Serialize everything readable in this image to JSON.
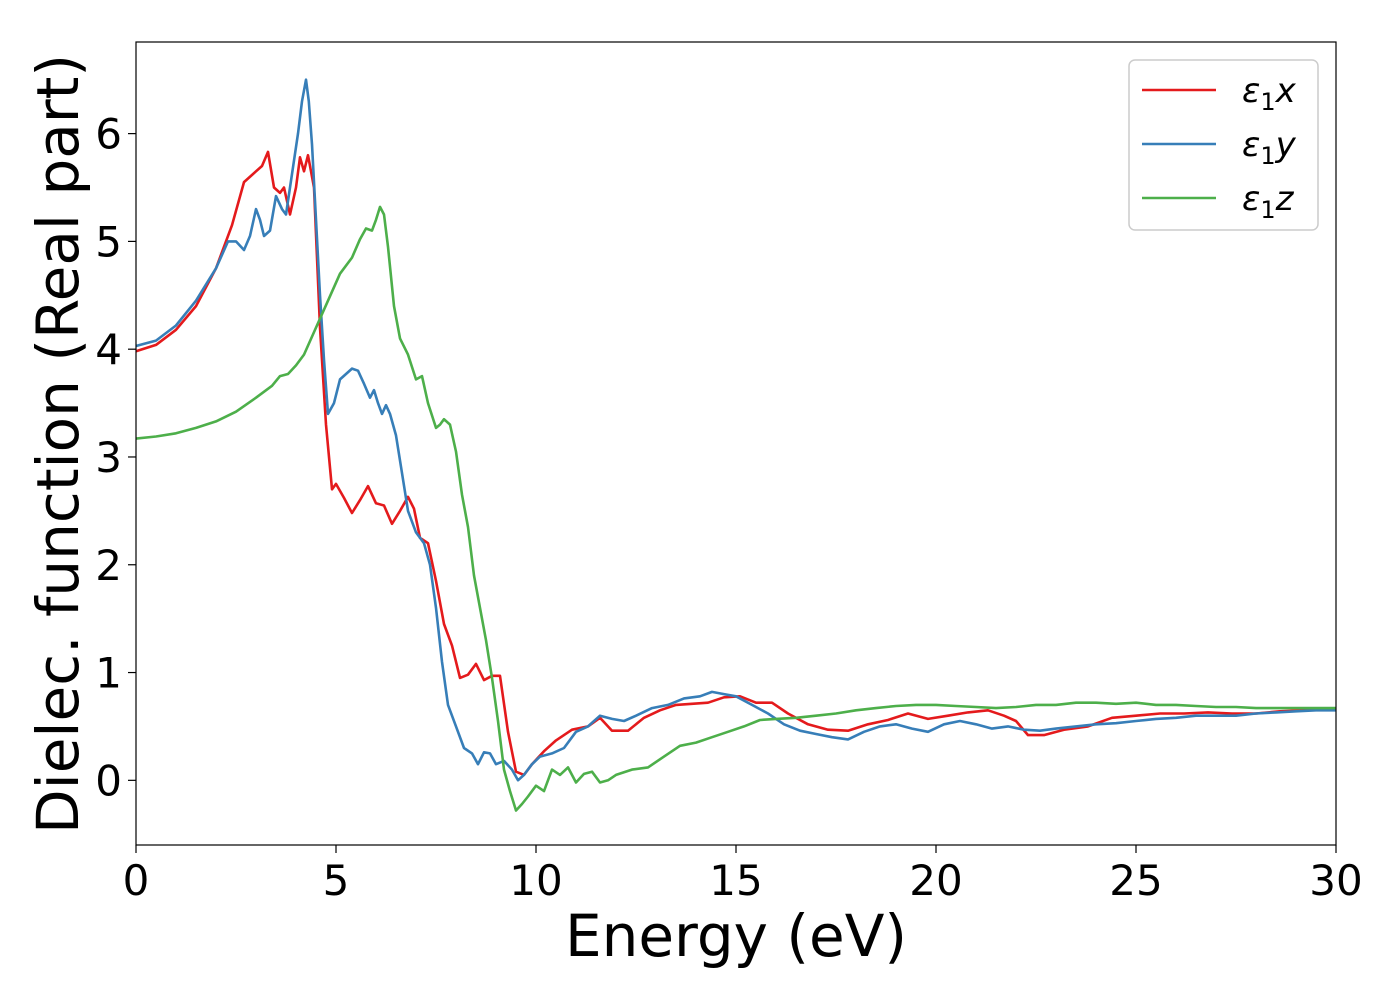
{
  "chart_data": {
    "type": "line",
    "title": "",
    "xlabel": "Energy (eV)",
    "ylabel": "Dielec. function (Real part)",
    "xlim": [
      0,
      30
    ],
    "ylim": [
      -0.6,
      6.85
    ],
    "xticks": [
      0,
      5,
      10,
      15,
      20,
      25,
      30
    ],
    "yticks": [
      0,
      1,
      2,
      3,
      4,
      5,
      6
    ],
    "grid": false,
    "legend_position": "top-right",
    "series": [
      {
        "name": "ε₁x",
        "legend_base": "ε",
        "legend_sub": "1",
        "legend_suffix": "x",
        "color": "#e41a1c",
        "x": [
          0,
          0.5,
          1.0,
          1.5,
          2.0,
          2.4,
          2.7,
          3.0,
          3.15,
          3.3,
          3.45,
          3.6,
          3.7,
          3.85,
          4.0,
          4.1,
          4.2,
          4.3,
          4.45,
          4.6,
          4.75,
          4.9,
          5.0,
          5.2,
          5.4,
          5.6,
          5.8,
          6.0,
          6.2,
          6.4,
          6.6,
          6.8,
          6.95,
          7.1,
          7.3,
          7.5,
          7.7,
          7.9,
          8.1,
          8.3,
          8.5,
          8.7,
          8.9,
          9.1,
          9.3,
          9.5,
          9.7,
          9.9,
          10.2,
          10.5,
          10.9,
          11.3,
          11.6,
          11.9,
          12.3,
          12.7,
          13.1,
          13.5,
          13.9,
          14.3,
          14.7,
          15.1,
          15.5,
          15.9,
          16.3,
          16.8,
          17.3,
          17.8,
          18.3,
          18.8,
          19.3,
          19.8,
          20.3,
          20.8,
          21.3,
          21.7,
          22.0,
          22.3,
          22.7,
          23.2,
          23.8,
          24.4,
          25.0,
          25.6,
          26.2,
          26.8,
          27.4,
          28.0,
          28.6,
          29.2,
          30.0
        ],
        "y": [
          3.98,
          4.04,
          4.18,
          4.4,
          4.75,
          5.15,
          5.55,
          5.65,
          5.7,
          5.83,
          5.5,
          5.45,
          5.5,
          5.25,
          5.5,
          5.78,
          5.65,
          5.8,
          5.5,
          4.2,
          3.3,
          2.7,
          2.75,
          2.62,
          2.48,
          2.6,
          2.73,
          2.57,
          2.55,
          2.38,
          2.5,
          2.63,
          2.52,
          2.25,
          2.2,
          1.85,
          1.45,
          1.25,
          0.95,
          0.98,
          1.08,
          0.93,
          0.97,
          0.97,
          0.45,
          0.08,
          0.05,
          0.15,
          0.27,
          0.37,
          0.47,
          0.5,
          0.58,
          0.46,
          0.46,
          0.58,
          0.65,
          0.7,
          0.71,
          0.72,
          0.77,
          0.78,
          0.72,
          0.72,
          0.62,
          0.52,
          0.47,
          0.46,
          0.52,
          0.56,
          0.62,
          0.57,
          0.6,
          0.63,
          0.65,
          0.6,
          0.55,
          0.42,
          0.42,
          0.47,
          0.5,
          0.58,
          0.6,
          0.62,
          0.62,
          0.63,
          0.62,
          0.62,
          0.64,
          0.65,
          0.66
        ]
      },
      {
        "name": "ε₁y",
        "legend_base": "ε",
        "legend_sub": "1",
        "legend_suffix": "y",
        "color": "#377eb8",
        "x": [
          0,
          0.5,
          1.0,
          1.5,
          2.0,
          2.3,
          2.5,
          2.7,
          2.85,
          3.0,
          3.1,
          3.2,
          3.35,
          3.5,
          3.65,
          3.75,
          3.85,
          3.95,
          4.05,
          4.15,
          4.25,
          4.32,
          4.4,
          4.5,
          4.6,
          4.7,
          4.8,
          4.95,
          5.1,
          5.25,
          5.4,
          5.55,
          5.7,
          5.85,
          5.95,
          6.05,
          6.15,
          6.25,
          6.35,
          6.5,
          6.65,
          6.8,
          7.0,
          7.2,
          7.35,
          7.5,
          7.65,
          7.8,
          8.0,
          8.2,
          8.4,
          8.55,
          8.7,
          8.85,
          9.0,
          9.2,
          9.4,
          9.55,
          9.7,
          9.9,
          10.1,
          10.4,
          10.7,
          11.0,
          11.3,
          11.6,
          11.9,
          12.2,
          12.5,
          12.9,
          13.3,
          13.7,
          14.1,
          14.4,
          14.7,
          15.0,
          15.4,
          15.8,
          16.2,
          16.6,
          17.0,
          17.4,
          17.8,
          18.2,
          18.6,
          19.0,
          19.4,
          19.8,
          20.2,
          20.6,
          21.0,
          21.4,
          21.8,
          22.2,
          22.6,
          23.0,
          23.5,
          24.0,
          24.5,
          25.0,
          25.5,
          26.0,
          26.5,
          27.0,
          27.5,
          28.0,
          28.5,
          29.0,
          29.5,
          30.0
        ],
        "y": [
          4.03,
          4.08,
          4.22,
          4.45,
          4.75,
          5.0,
          5.0,
          4.92,
          5.05,
          5.3,
          5.2,
          5.05,
          5.1,
          5.42,
          5.3,
          5.25,
          5.5,
          5.75,
          6.0,
          6.3,
          6.5,
          6.3,
          5.9,
          5.2,
          4.5,
          3.9,
          3.4,
          3.5,
          3.72,
          3.77,
          3.82,
          3.8,
          3.68,
          3.55,
          3.62,
          3.5,
          3.4,
          3.48,
          3.4,
          3.2,
          2.85,
          2.5,
          2.3,
          2.2,
          2.0,
          1.6,
          1.1,
          0.7,
          0.5,
          0.3,
          0.25,
          0.15,
          0.26,
          0.25,
          0.15,
          0.18,
          0.1,
          0.0,
          0.05,
          0.15,
          0.22,
          0.25,
          0.3,
          0.45,
          0.5,
          0.6,
          0.57,
          0.55,
          0.6,
          0.67,
          0.7,
          0.76,
          0.78,
          0.82,
          0.8,
          0.78,
          0.7,
          0.62,
          0.52,
          0.46,
          0.43,
          0.4,
          0.38,
          0.45,
          0.5,
          0.52,
          0.48,
          0.45,
          0.52,
          0.55,
          0.52,
          0.48,
          0.5,
          0.47,
          0.46,
          0.48,
          0.5,
          0.52,
          0.53,
          0.55,
          0.57,
          0.58,
          0.6,
          0.6,
          0.6,
          0.62,
          0.63,
          0.64,
          0.65,
          0.65
        ]
      },
      {
        "name": "ε₁z",
        "legend_base": "ε",
        "legend_sub": "1",
        "legend_suffix": "z",
        "color": "#4daf4a",
        "x": [
          0,
          0.5,
          1.0,
          1.5,
          2.0,
          2.5,
          3.0,
          3.4,
          3.6,
          3.8,
          4.0,
          4.2,
          4.5,
          4.8,
          5.1,
          5.4,
          5.6,
          5.75,
          5.9,
          6.0,
          6.1,
          6.2,
          6.3,
          6.45,
          6.6,
          6.8,
          7.0,
          7.15,
          7.3,
          7.5,
          7.6,
          7.7,
          7.85,
          8.0,
          8.15,
          8.3,
          8.45,
          8.6,
          8.75,
          8.9,
          9.05,
          9.2,
          9.35,
          9.5,
          9.65,
          9.8,
          10.0,
          10.2,
          10.4,
          10.6,
          10.8,
          11.0,
          11.2,
          11.4,
          11.6,
          11.8,
          12.0,
          12.4,
          12.8,
          13.2,
          13.6,
          14.0,
          14.4,
          14.8,
          15.2,
          15.6,
          16.0,
          16.5,
          17.0,
          17.5,
          18.0,
          18.5,
          19.0,
          19.5,
          20.0,
          20.5,
          21.0,
          21.5,
          22.0,
          22.5,
          23.0,
          23.5,
          24.0,
          24.5,
          25.0,
          25.5,
          26.0,
          26.5,
          27.0,
          27.5,
          28.0,
          28.5,
          29.0,
          29.5,
          30.0
        ],
        "y": [
          3.17,
          3.19,
          3.22,
          3.27,
          3.33,
          3.42,
          3.55,
          3.66,
          3.75,
          3.77,
          3.85,
          3.95,
          4.2,
          4.45,
          4.7,
          4.85,
          5.02,
          5.12,
          5.1,
          5.2,
          5.32,
          5.25,
          4.95,
          4.4,
          4.1,
          3.95,
          3.72,
          3.75,
          3.5,
          3.27,
          3.3,
          3.35,
          3.3,
          3.05,
          2.65,
          2.35,
          1.9,
          1.6,
          1.3,
          0.95,
          0.55,
          0.1,
          -0.1,
          -0.28,
          -0.22,
          -0.15,
          -0.05,
          -0.1,
          0.1,
          0.05,
          0.12,
          -0.02,
          0.06,
          0.08,
          -0.02,
          0.0,
          0.05,
          0.1,
          0.12,
          0.22,
          0.32,
          0.35,
          0.4,
          0.45,
          0.5,
          0.56,
          0.57,
          0.58,
          0.6,
          0.62,
          0.65,
          0.67,
          0.69,
          0.7,
          0.7,
          0.69,
          0.68,
          0.67,
          0.68,
          0.7,
          0.7,
          0.72,
          0.72,
          0.71,
          0.72,
          0.7,
          0.7,
          0.69,
          0.68,
          0.68,
          0.67,
          0.67,
          0.67,
          0.67,
          0.67
        ]
      }
    ]
  }
}
